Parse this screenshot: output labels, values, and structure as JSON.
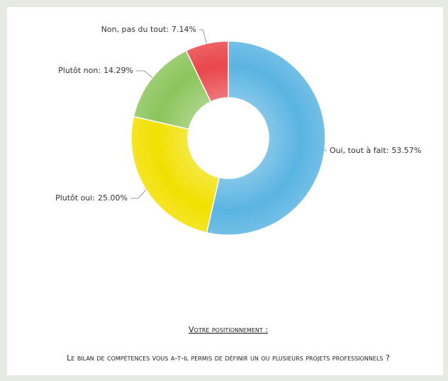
{
  "chart_data": {
    "type": "donut",
    "categories": [
      "Oui, tout à fait:",
      "Plutôt oui:",
      "Plutôt non:",
      "Non, pas du tout:"
    ],
    "values": [
      53.57,
      25.0,
      14.29,
      7.14
    ],
    "value_labels": [
      "53.57%",
      "25.00%",
      "14.29%",
      "7.14%"
    ],
    "colors": [
      "#5ab4e2",
      "#f2e000",
      "#8cc55c",
      "#e9474b"
    ],
    "heading": "Votre positionnement :",
    "question": "Le bilan de compétences vous a-t-il permis de définir un ou plusieurs projets professionnels ?"
  }
}
